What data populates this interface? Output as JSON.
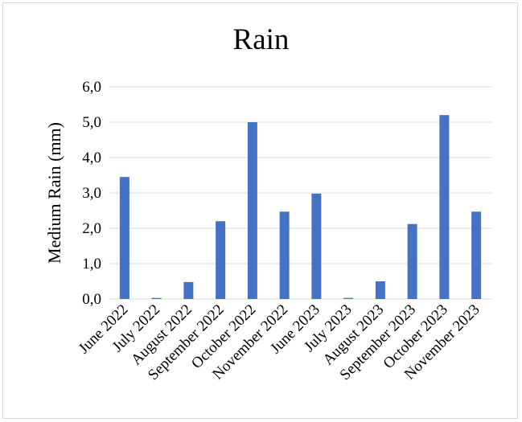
{
  "chart_data": {
    "type": "bar",
    "title": "Rain",
    "xlabel": "",
    "ylabel": "Medium Rain (mm)",
    "ylim": [
      0,
      6
    ],
    "y_ticks": [
      "0,0",
      "1,0",
      "2,0",
      "3,0",
      "4,0",
      "5,0",
      "6,0"
    ],
    "grid": true,
    "categories": [
      "June 2022",
      "July 2022",
      "August 2022",
      "September 2022",
      "October 2022",
      "November 2022",
      "June 2023",
      "July 2023",
      "August 2023",
      "September 2023",
      "October 2023",
      "November 2023"
    ],
    "values": [
      3.45,
      0.03,
      0.48,
      2.2,
      5.0,
      2.47,
      2.98,
      0.03,
      0.5,
      2.12,
      5.2,
      2.47
    ],
    "color": "#4472c4"
  }
}
